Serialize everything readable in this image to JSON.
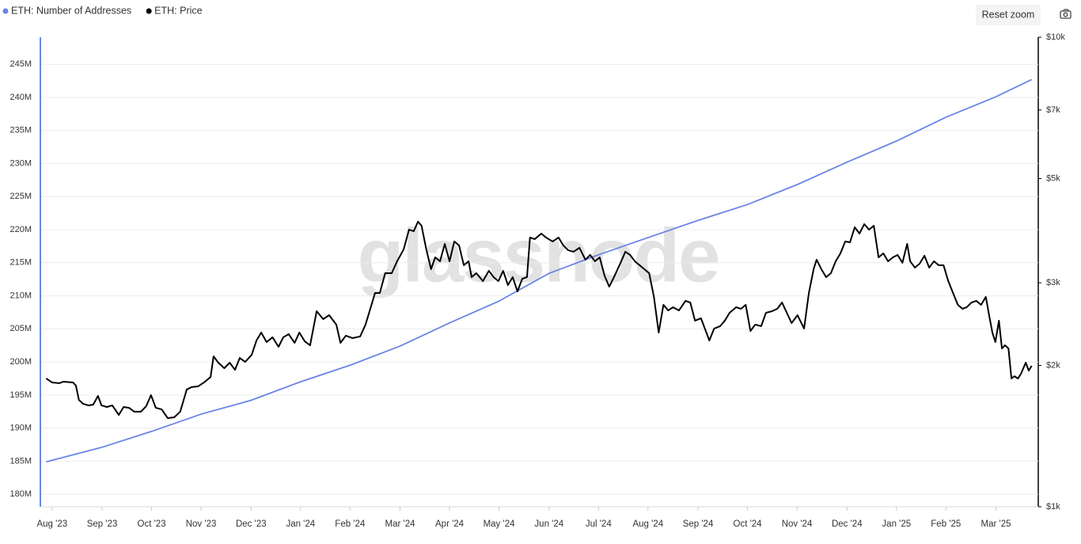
{
  "toolbar": {
    "reset_zoom": "Reset zoom"
  },
  "chart_data": {
    "type": "line",
    "watermark": "glassnode",
    "legend": "top-left",
    "grid": true,
    "xlim": [
      2023.562,
      2025.238
    ],
    "xticks": [
      {
        "value": 2023.583,
        "label": "Aug '23"
      },
      {
        "value": 2023.667,
        "label": "Sep '23"
      },
      {
        "value": 2023.75,
        "label": "Oct '23"
      },
      {
        "value": 2023.833,
        "label": "Nov '23"
      },
      {
        "value": 2023.917,
        "label": "Dec '23"
      },
      {
        "value": 2024.0,
        "label": "Jan '24"
      },
      {
        "value": 2024.083,
        "label": "Feb '24"
      },
      {
        "value": 2024.167,
        "label": "Mar '24"
      },
      {
        "value": 2024.25,
        "label": "Apr '24"
      },
      {
        "value": 2024.333,
        "label": "May '24"
      },
      {
        "value": 2024.417,
        "label": "Jun '24"
      },
      {
        "value": 2024.5,
        "label": "Jul '24"
      },
      {
        "value": 2024.583,
        "label": "Aug '24"
      },
      {
        "value": 2024.667,
        "label": "Sep '24"
      },
      {
        "value": 2024.75,
        "label": "Oct '24"
      },
      {
        "value": 2024.833,
        "label": "Nov '24"
      },
      {
        "value": 2024.917,
        "label": "Dec '24"
      },
      {
        "value": 2025.0,
        "label": "Jan '25"
      },
      {
        "value": 2025.083,
        "label": "Feb '25"
      },
      {
        "value": 2025.167,
        "label": "Mar '25"
      }
    ],
    "ylim": [
      178.1,
      249.1
    ],
    "yticks": [
      {
        "value": 180,
        "label": "180M"
      },
      {
        "value": 185,
        "label": "185M"
      },
      {
        "value": 190,
        "label": "190M"
      },
      {
        "value": 195,
        "label": "195M"
      },
      {
        "value": 200,
        "label": "200M"
      },
      {
        "value": 205,
        "label": "205M"
      },
      {
        "value": 210,
        "label": "210M"
      },
      {
        "value": 215,
        "label": "215M"
      },
      {
        "value": 220,
        "label": "220M"
      },
      {
        "value": 225,
        "label": "225M"
      },
      {
        "value": 230,
        "label": "230M"
      },
      {
        "value": 235,
        "label": "235M"
      },
      {
        "value": 240,
        "label": "240M"
      },
      {
        "value": 245,
        "label": "245M"
      }
    ],
    "y2lim": [
      1000,
      10000
    ],
    "y2log": true,
    "y2ticks": [
      {
        "value": 1000,
        "label": "$1k"
      },
      {
        "value": 2000,
        "label": "$2k"
      },
      {
        "value": 3000,
        "label": "$3k"
      },
      {
        "value": 5000,
        "label": "$5k"
      },
      {
        "value": 7000,
        "label": "$7k"
      },
      {
        "value": 10000,
        "label": "$10k"
      }
    ],
    "series": [
      {
        "name": "ETH: Number of Addresses",
        "color": "#6a86e6",
        "axis": "y",
        "x": [
          2023.573,
          2023.667,
          2023.75,
          2023.833,
          2023.917,
          2024.0,
          2024.083,
          2024.167,
          2024.25,
          2024.333,
          2024.417,
          2024.5,
          2024.583,
          2024.667,
          2024.75,
          2024.833,
          2024.917,
          2025.0,
          2025.083,
          2025.167,
          2025.227
        ],
        "values": [
          184.9,
          187.1,
          189.5,
          192.1,
          194.2,
          197.0,
          199.5,
          202.4,
          205.9,
          209.2,
          213.4,
          216.2,
          218.8,
          221.4,
          223.8,
          226.8,
          230.2,
          233.4,
          237.0,
          240.1,
          242.7
        ]
      },
      {
        "name": "ETH: Price",
        "color": "#000000",
        "axis": "y2",
        "x": [
          2023.573,
          2023.583,
          2023.595,
          2023.602,
          2023.618,
          2023.623,
          2023.628,
          2023.635,
          2023.644,
          2023.652,
          2023.66,
          2023.666,
          2023.675,
          2023.684,
          2023.695,
          2023.703,
          2023.712,
          2023.721,
          2023.732,
          2023.741,
          2023.749,
          2023.757,
          2023.767,
          2023.777,
          2023.788,
          2023.798,
          2023.809,
          2023.817,
          2023.828,
          2023.838,
          2023.849,
          2023.854,
          2023.862,
          2023.872,
          2023.881,
          2023.89,
          2023.898,
          2023.907,
          2023.918,
          2023.926,
          2023.934,
          2023.943,
          2023.953,
          2023.963,
          2023.971,
          2023.98,
          2023.99,
          2023.998,
          2024.007,
          2024.016,
          2024.027,
          2024.038,
          2024.048,
          2024.06,
          2024.067,
          2024.076,
          2024.087,
          2024.1,
          2024.109,
          2024.117,
          2024.125,
          2024.133,
          2024.142,
          2024.153,
          2024.162,
          2024.173,
          2024.182,
          2024.19,
          2024.197,
          2024.203,
          2024.211,
          2024.219,
          2024.226,
          2024.234,
          2024.242,
          2024.25,
          2024.258,
          2024.266,
          2024.274,
          2024.282,
          2024.287,
          2024.295,
          2024.306,
          2024.316,
          2024.324,
          2024.332,
          2024.34,
          2024.348,
          2024.356,
          2024.364,
          2024.372,
          2024.38,
          2024.385,
          2024.393,
          2024.404,
          2024.412,
          2024.423,
          2024.433,
          2024.441,
          2024.449,
          2024.458,
          2024.468,
          2024.478,
          2024.486,
          2024.494,
          2024.502,
          2024.51,
          2024.518,
          2024.526,
          2024.537,
          2024.545,
          2024.553,
          2024.561,
          2024.569,
          2024.577,
          2024.585,
          2024.593,
          2024.601,
          2024.609,
          2024.617,
          2024.625,
          2024.635,
          2024.646,
          2024.654,
          2024.662,
          2024.672,
          2024.68,
          2024.686,
          2024.694,
          2024.704,
          2024.712,
          2024.72,
          2024.731,
          2024.739,
          2024.747,
          2024.755,
          2024.763,
          2024.773,
          2024.781,
          2024.791,
          2024.8,
          2024.808,
          2024.816,
          2024.824,
          2024.834,
          2024.845,
          2024.853,
          2024.861,
          2024.866,
          2024.874,
          2024.882,
          2024.89,
          2024.898,
          2024.906,
          2024.914,
          2024.922,
          2024.93,
          2024.938,
          2024.946,
          2024.954,
          2024.962,
          2024.97,
          2024.978,
          2024.986,
          2024.994,
          2025.002,
          2025.01,
          2025.018,
          2025.023,
          2025.031,
          2025.039,
          2025.047,
          2025.055,
          2025.063,
          2025.071,
          2025.079,
          2025.087,
          2025.095,
          2025.103,
          2025.111,
          2025.118,
          2025.126,
          2025.134,
          2025.142,
          2025.15,
          2025.156,
          2025.161,
          2025.166,
          2025.172,
          2025.177,
          2025.182,
          2025.188,
          2025.193,
          2025.198,
          2025.204,
          2025.209,
          2025.217,
          2025.222,
          2025.227
        ],
        "values": [
          1876,
          1840,
          1833,
          1847,
          1840,
          1812,
          1689,
          1657,
          1644,
          1650,
          1722,
          1644,
          1631,
          1644,
          1569,
          1631,
          1625,
          1594,
          1594,
          1638,
          1729,
          1625,
          1612,
          1545,
          1551,
          1594,
          1777,
          1798,
          1805,
          1840,
          1890,
          2091,
          2027,
          1973,
          2027,
          1958,
          2075,
          2035,
          2107,
          2260,
          2350,
          2243,
          2296,
          2191,
          2296,
          2332,
          2234,
          2350,
          2251,
          2208,
          2609,
          2510,
          2559,
          2443,
          2234,
          2314,
          2287,
          2305,
          2443,
          2640,
          2853,
          2853,
          3144,
          3144,
          3333,
          3533,
          3892,
          3863,
          4047,
          3968,
          3533,
          3206,
          3398,
          3333,
          3630,
          3333,
          3673,
          3602,
          3269,
          3333,
          3084,
          3144,
          3024,
          3181,
          3084,
          3024,
          3181,
          2966,
          3084,
          2875,
          3059,
          3084,
          3744,
          3716,
          3818,
          3744,
          3673,
          3744,
          3602,
          3519,
          3492,
          3561,
          3359,
          3438,
          3333,
          3398,
          3108,
          2943,
          3084,
          3308,
          3492,
          3438,
          3333,
          3269,
          3206,
          3144,
          2799,
          2350,
          2692,
          2619,
          2661,
          2619,
          2745,
          2723,
          2491,
          2520,
          2368,
          2260,
          2396,
          2424,
          2491,
          2589,
          2661,
          2640,
          2692,
          2368,
          2443,
          2424,
          2589,
          2609,
          2640,
          2723,
          2589,
          2462,
          2559,
          2396,
          2853,
          3206,
          3359,
          3206,
          3084,
          3144,
          3333,
          3465,
          3673,
          3658,
          3938,
          3818,
          3999,
          3892,
          3968,
          3398,
          3465,
          3333,
          3398,
          3438,
          3308,
          3630,
          3333,
          3231,
          3295,
          3425,
          3231,
          3333,
          3269,
          3269,
          3024,
          2853,
          2692,
          2640,
          2661,
          2723,
          2745,
          2692,
          2799,
          2539,
          2350,
          2243,
          2491,
          2174,
          2208,
          2174,
          1876,
          1897,
          1876,
          1920,
          2027,
          1950,
          1996
        ]
      }
    ]
  }
}
